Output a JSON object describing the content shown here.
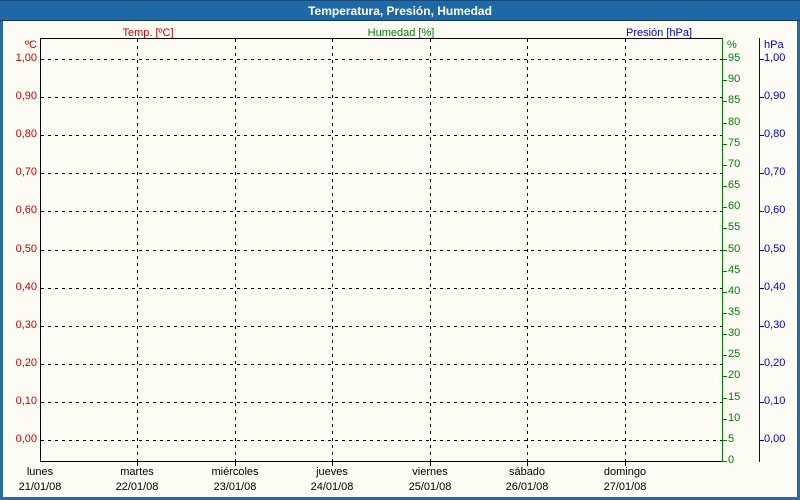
{
  "window": {
    "title": "Temperatura, Presión, Humedad"
  },
  "legend": {
    "temp": "Temp. [ºC]",
    "humidity": "Humedad [%]",
    "pressure": "Presión [hPa]"
  },
  "colors": {
    "temp": "#cc0000",
    "humidity": "#008000",
    "pressure": "#0000cc",
    "titlebar": "#1e69a5",
    "frame": "#2b6aa0",
    "grid": "#000000"
  },
  "axes": {
    "left_temp": {
      "unit": "ºC",
      "ticks": [
        "1,00",
        "0,90",
        "0,80",
        "0,70",
        "0,60",
        "0,50",
        "0,40",
        "0,30",
        "0,20",
        "0,10",
        "0,00"
      ]
    },
    "right_humidity": {
      "unit": "%",
      "ticks": [
        "95",
        "90",
        "85",
        "80",
        "75",
        "70",
        "65",
        "60",
        "55",
        "50",
        "45",
        "40",
        "35",
        "30",
        "25",
        "20",
        "15",
        "10",
        "5",
        "0"
      ]
    },
    "right_pressure": {
      "unit": "hPa",
      "ticks": [
        "1,00",
        "0,90",
        "0,80",
        "0,70",
        "0,60",
        "0,50",
        "0,40",
        "0,30",
        "0,20",
        "0,10",
        "0,00"
      ]
    }
  },
  "x_axis": {
    "days": [
      {
        "name": "lunes",
        "date": "21/01/08"
      },
      {
        "name": "martes",
        "date": "22/01/08"
      },
      {
        "name": "miércoles",
        "date": "23/01/08"
      },
      {
        "name": "jueves",
        "date": "24/01/08"
      },
      {
        "name": "viernes",
        "date": "25/01/08"
      },
      {
        "name": "sábado",
        "date": "26/01/08"
      },
      {
        "name": "domingo",
        "date": "27/01/08"
      }
    ]
  },
  "chart_data": {
    "type": "line",
    "title": "Temperatura, Presión, Humedad",
    "grid": "dashed",
    "legend_position": "top",
    "x": {
      "categories": [
        "lunes 21/01/08",
        "martes 22/01/08",
        "miércoles 23/01/08",
        "jueves 24/01/08",
        "viernes 25/01/08",
        "sábado 26/01/08",
        "domingo 27/01/08"
      ]
    },
    "series": [
      {
        "name": "Temp. [ºC]",
        "unit": "ºC",
        "color": "#cc0000",
        "axis": "left",
        "axis_range": [
          0.0,
          1.0
        ],
        "tick_step": 0.1,
        "values": []
      },
      {
        "name": "Humedad [%]",
        "unit": "%",
        "color": "#008000",
        "axis": "right",
        "axis_range": [
          0,
          100
        ],
        "tick_step": 5,
        "values": []
      },
      {
        "name": "Presión [hPa]",
        "unit": "hPa",
        "color": "#0000cc",
        "axis": "right",
        "axis_range": [
          0.0,
          1.0
        ],
        "tick_step": 0.1,
        "values": []
      }
    ]
  }
}
